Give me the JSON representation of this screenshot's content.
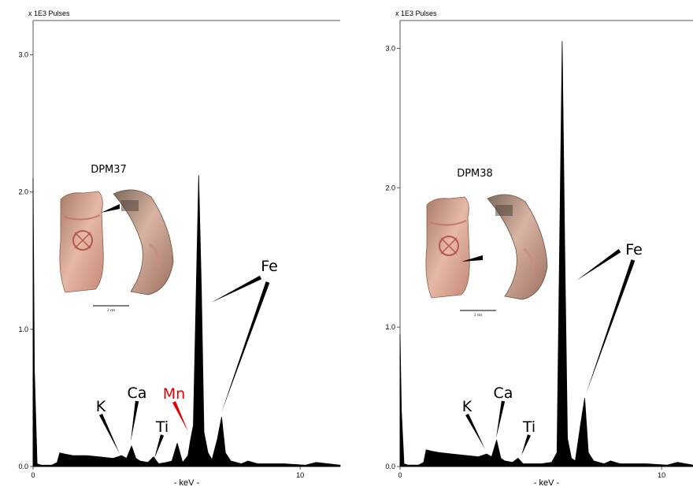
{
  "chart_data": [
    {
      "type": "line",
      "unit_label": "x 1E3 Pulses",
      "xlabel": "- keV -",
      "ylabel": "",
      "xlim": [
        0,
        11.5
      ],
      "ylim": [
        0,
        3.25
      ],
      "xticks": [
        0,
        10
      ],
      "yticks": [
        0.0,
        1.0,
        2.0,
        3.0
      ],
      "ytick_labels": [
        "0.0",
        "1.0",
        "2.0",
        "3.0"
      ],
      "series": [
        {
          "x": [
            0,
            0.05,
            0.15,
            0.3,
            0.5,
            0.7,
            0.9,
            1.0,
            1.2,
            1.5,
            2.0,
            2.5,
            3.0,
            3.31,
            3.5,
            3.69,
            3.85,
            4.0,
            4.3,
            4.51,
            4.7,
            5.0,
            5.2,
            5.4,
            5.6,
            5.8,
            5.9,
            6.0,
            6.2,
            6.3,
            6.4,
            6.55,
            6.7,
            6.9,
            7.06,
            7.2,
            7.4,
            7.8,
            8.05,
            8.4,
            8.9,
            9.4,
            10.2,
            10.6,
            11.5
          ],
          "y": [
            2.1,
            0.7,
            0.02,
            0.01,
            0.01,
            0.01,
            0.03,
            0.1,
            0.09,
            0.08,
            0.08,
            0.07,
            0.06,
            0.08,
            0.06,
            0.15,
            0.06,
            0.04,
            0.03,
            0.07,
            0.02,
            0.03,
            0.04,
            0.17,
            0.03,
            0.08,
            0.2,
            0.3,
            2.12,
            1.3,
            0.25,
            0.1,
            0.05,
            0.2,
            0.36,
            0.1,
            0.04,
            0.02,
            0.04,
            0.02,
            0.02,
            0.02,
            0.01,
            0.03,
            0.01
          ]
        }
      ],
      "annotations": [
        {
          "text": "K",
          "x": 3.31,
          "color": "#000000"
        },
        {
          "text": "Ca",
          "x": 3.69,
          "color": "#000000"
        },
        {
          "text": "Ti",
          "x": 4.51,
          "color": "#000000"
        },
        {
          "text": "Mn",
          "x": 5.9,
          "color": "#e00000"
        },
        {
          "text": "Fe",
          "x": 6.4,
          "color": "#000000"
        }
      ],
      "inset": {
        "sample_label": "DPM37",
        "scale_label": "2 cm"
      }
    },
    {
      "type": "line",
      "unit_label": "x 1E3 Pulses",
      "xlabel": "- keV -",
      "ylabel": "",
      "xlim": [
        0,
        11.2
      ],
      "ylim": [
        0,
        3.2
      ],
      "xticks": [
        0,
        10
      ],
      "yticks": [
        0.0,
        1.0,
        2.0,
        3.0
      ],
      "ytick_labels": [
        "0.0",
        "1.0",
        "2.0",
        "3.0"
      ],
      "series": [
        {
          "x": [
            0,
            0.05,
            0.15,
            0.3,
            0.5,
            0.7,
            0.9,
            1.0,
            1.2,
            1.5,
            2.0,
            2.5,
            3.0,
            3.31,
            3.5,
            3.69,
            3.85,
            4.0,
            4.3,
            4.51,
            4.7,
            5.0,
            5.4,
            5.8,
            6.0,
            6.2,
            6.3,
            6.4,
            6.55,
            6.7,
            6.9,
            7.06,
            7.2,
            7.4,
            7.8,
            8.05,
            8.4,
            8.9,
            9.4,
            10.2,
            10.6,
            11.2
          ],
          "y": [
            0.95,
            0.4,
            0.02,
            0.01,
            0.01,
            0.01,
            0.03,
            0.12,
            0.11,
            0.1,
            0.09,
            0.08,
            0.07,
            0.09,
            0.07,
            0.19,
            0.06,
            0.04,
            0.03,
            0.06,
            0.02,
            0.02,
            0.02,
            0.03,
            0.1,
            3.05,
            1.5,
            0.2,
            0.06,
            0.04,
            0.3,
            0.49,
            0.1,
            0.04,
            0.02,
            0.04,
            0.02,
            0.02,
            0.02,
            0.01,
            0.03,
            0.01
          ]
        }
      ],
      "annotations": [
        {
          "text": "K",
          "x": 3.31,
          "color": "#000000"
        },
        {
          "text": "Ca",
          "x": 3.69,
          "color": "#000000"
        },
        {
          "text": "Ti",
          "x": 4.51,
          "color": "#000000"
        },
        {
          "text": "Fe",
          "x": 6.4,
          "color": "#000000"
        }
      ],
      "inset": {
        "sample_label": "DPM38",
        "scale_label": "2 cm"
      }
    }
  ]
}
